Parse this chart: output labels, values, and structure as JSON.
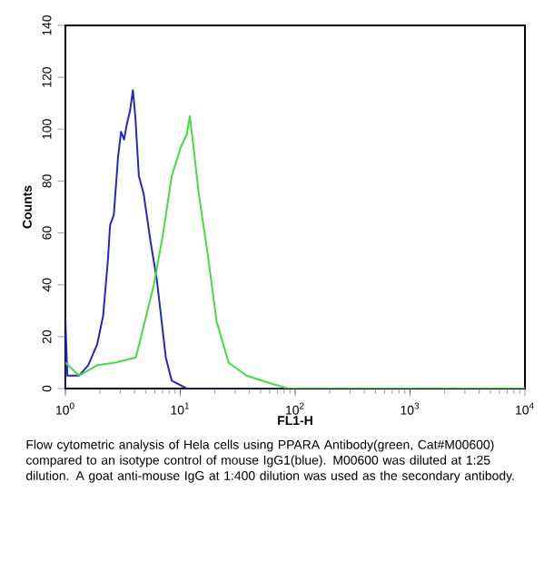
{
  "chart_data": {
    "type": "line",
    "log": "x",
    "xlabel": "FL1-H",
    "ylabel": "Counts",
    "xlim": [
      1,
      10000
    ],
    "ylim": [
      0,
      140
    ],
    "xticks": [
      {
        "value": 1,
        "label": "10$^{0}$"
      },
      {
        "value": 10,
        "label": "10$^{1}$"
      },
      {
        "value": 100,
        "label": "10$^{2}$"
      },
      {
        "value": 1000,
        "label": "10$^{3}$"
      },
      {
        "value": 10000,
        "label": "10$^{4}$"
      }
    ],
    "yticks": [
      0,
      20,
      40,
      60,
      80,
      100,
      120,
      140
    ],
    "grid": false,
    "marker": "none",
    "line_style": "solid",
    "series": [
      {
        "color": "#2626c8",
        "x": [
          1,
          1,
          1.04,
          1.32,
          1.58,
          1.89,
          2.13,
          2.34,
          2.45,
          2.64,
          2.87,
          3.05,
          3.24,
          3.43,
          3.65,
          3.87,
          4.06,
          4.36,
          4.8,
          5.54,
          6.25,
          6.88,
          7.48,
          8.43,
          11.4,
          16.3,
          10000
        ],
        "values": [
          0,
          27,
          5,
          5,
          9,
          17,
          28,
          49,
          63,
          67,
          89,
          99,
          96,
          102,
          107,
          115,
          105,
          82,
          75,
          56,
          42,
          26,
          12,
          3,
          0,
          0,
          0
        ]
      },
      {
        "color": "#3ee03e",
        "x": [
          1,
          1.32,
          1.89,
          2.7,
          4.11,
          4.92,
          5.89,
          7.04,
          8.43,
          10.1,
          11.4,
          12.1,
          12.8,
          14.5,
          17.3,
          20.7,
          26.3,
          37.7,
          60.8,
          87.1,
          10000
        ],
        "values": [
          10,
          5,
          9,
          10,
          12,
          26,
          40,
          59,
          82,
          93,
          98,
          105,
          96,
          75,
          52,
          26,
          10,
          5,
          2,
          0,
          0
        ]
      }
    ],
    "annotations": [
      "Flow cytometric analysis of Hela cells using PPARA Antibody(green, Cat#M00600) compared to an isotype control of mouse IgG1(blue). M00600 was diluted at 1:25 dilution. A goat anti-mouse IgG at 1:400 dilution was used as the secondary antibody."
    ]
  }
}
